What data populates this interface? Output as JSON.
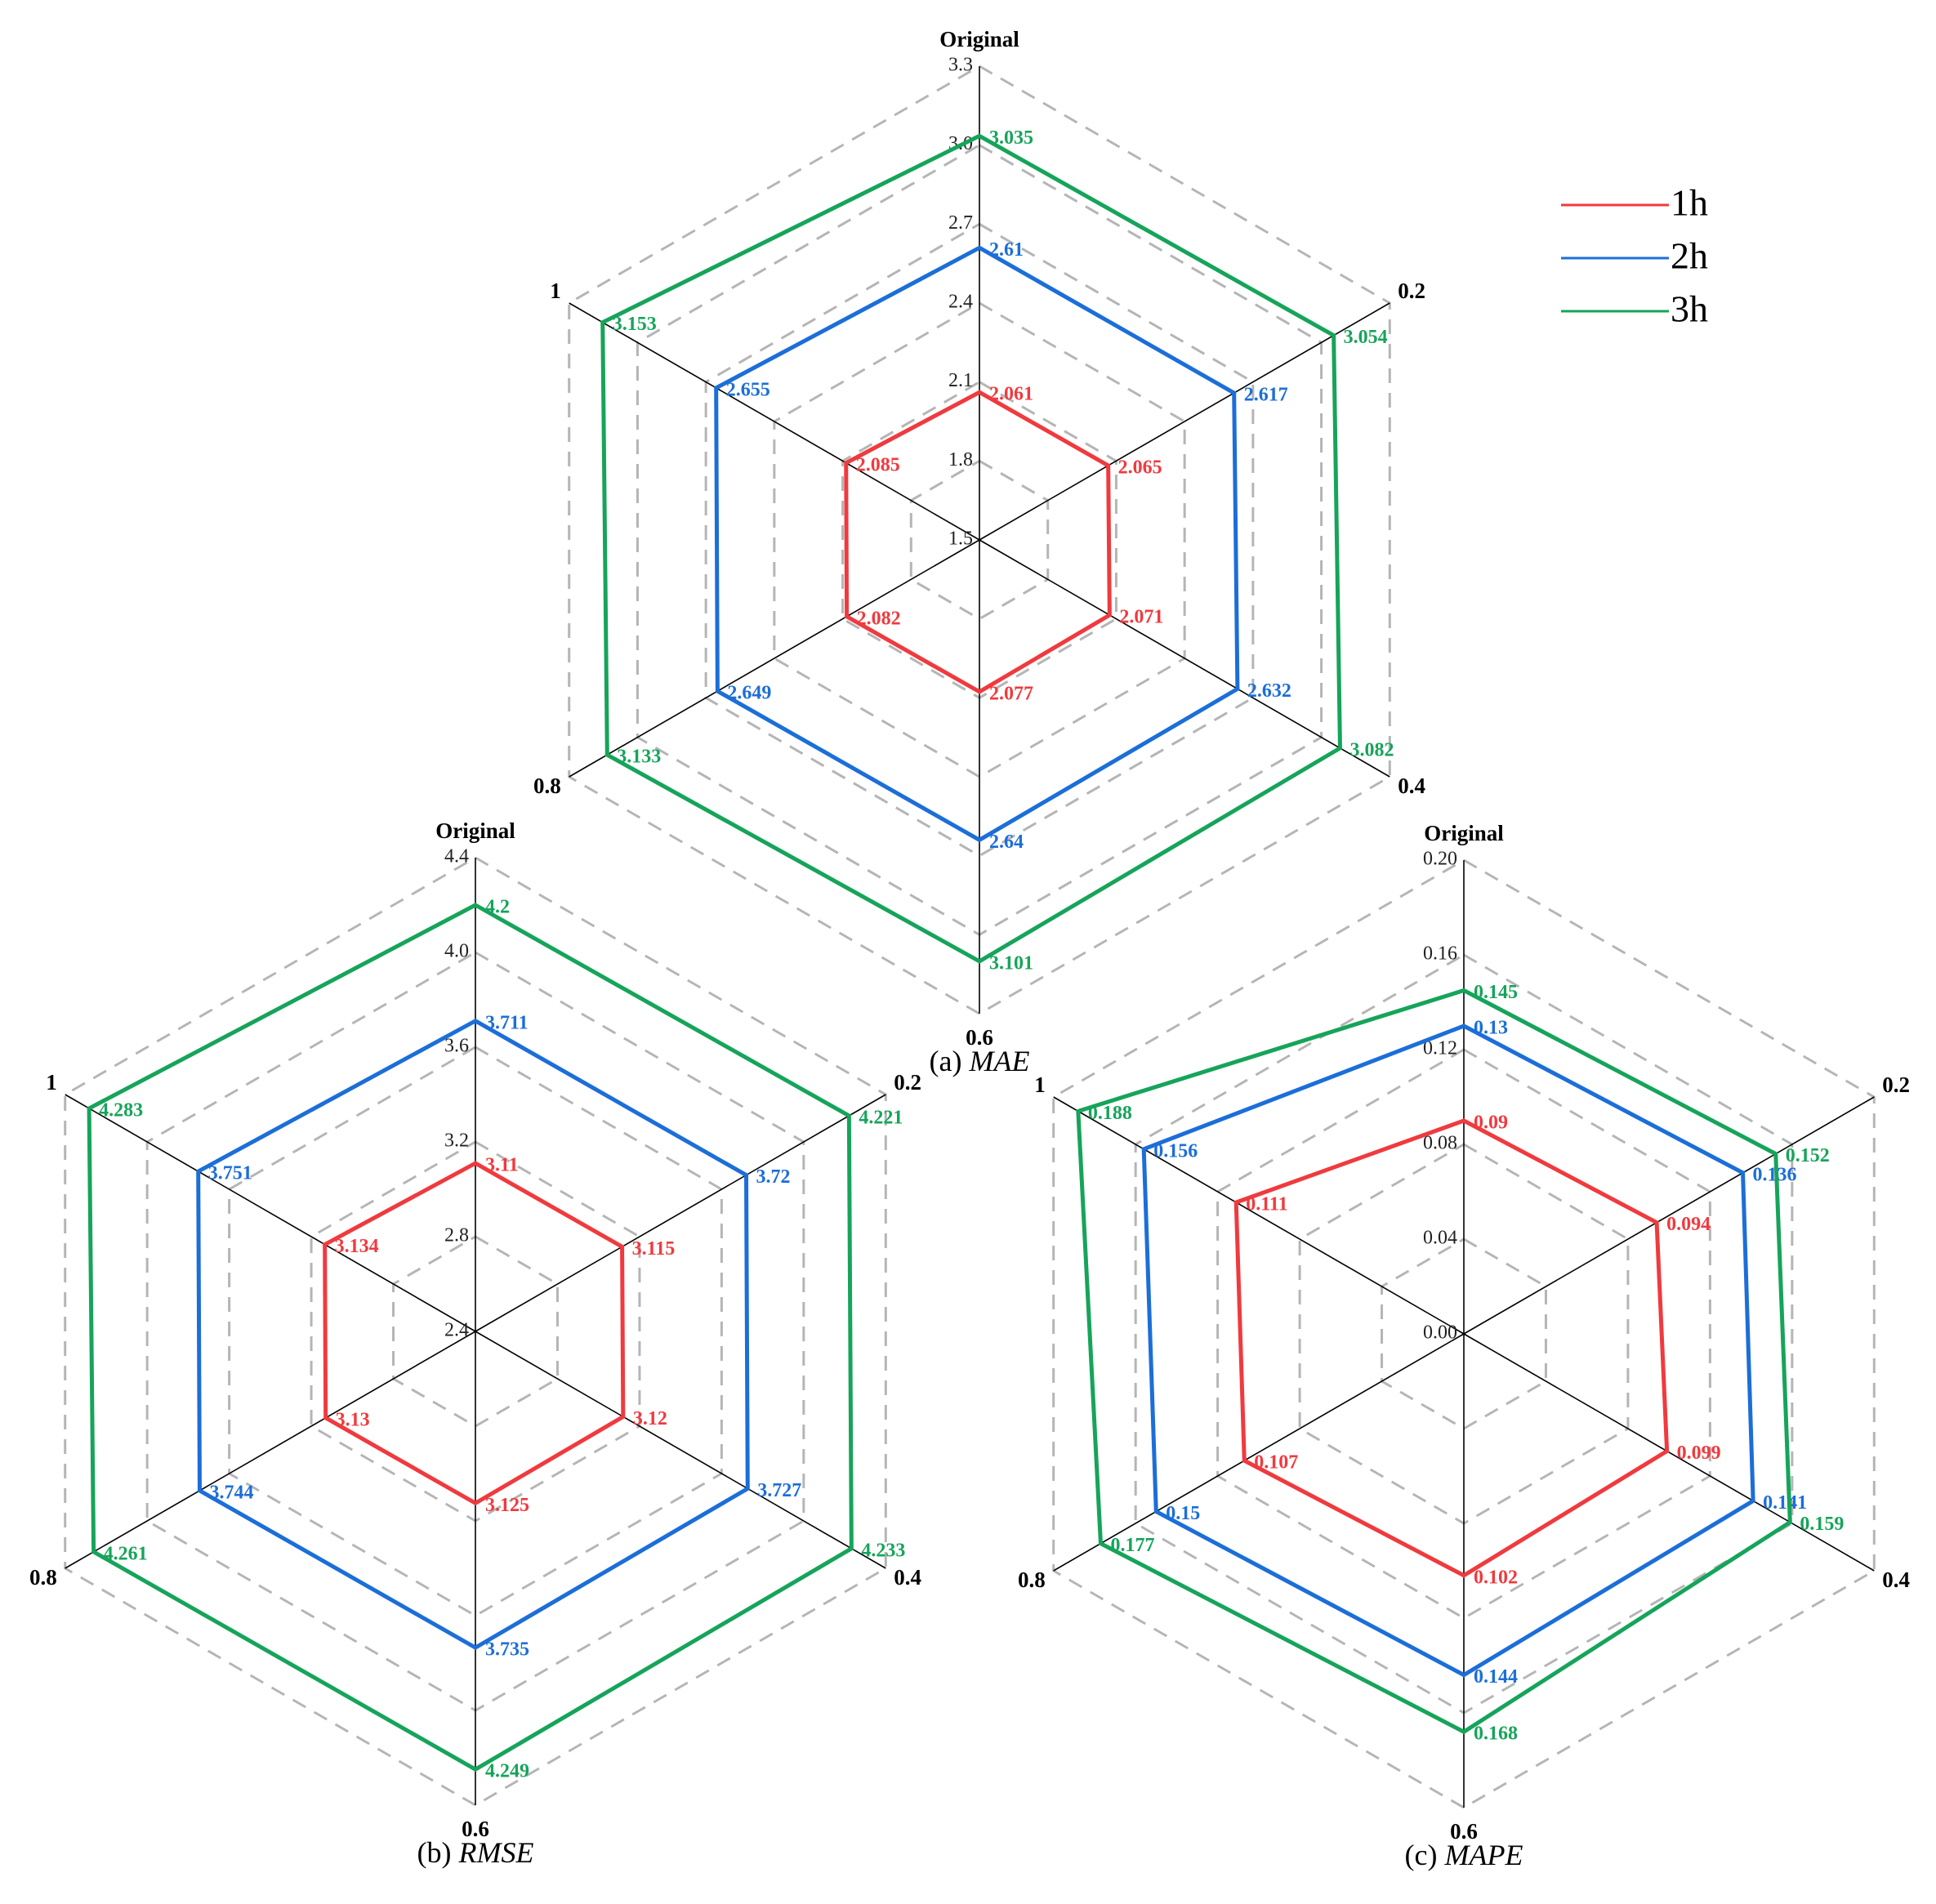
{
  "chart_data": [
    {
      "type": "radar",
      "panel": "(a)",
      "title": "MAE",
      "categories": [
        "Original",
        "0.2",
        "0.4",
        "0.6",
        "0.8",
        "1"
      ],
      "ylim": [
        1.5,
        3.3
      ],
      "yticks": [
        1.5,
        1.8,
        2.1,
        2.4,
        2.7,
        {
          "value": 3,
          "label": "3.0"
        },
        3.3
      ],
      "grid": true,
      "legend": "upper right",
      "series": [
        {
          "name": "1h",
          "color": "#f03a3e",
          "values": [
            2.061,
            2.065,
            2.071,
            2.077,
            2.082,
            2.085
          ]
        },
        {
          "name": "2h",
          "color": "#1c6ed8",
          "values": [
            2.61,
            2.617,
            2.632,
            2.64,
            2.649,
            2.655
          ]
        },
        {
          "name": "3h",
          "color": "#16a45a",
          "values": [
            3.035,
            3.054,
            3.082,
            3.101,
            3.133,
            3.153
          ]
        }
      ]
    },
    {
      "type": "radar",
      "panel": "(b)",
      "title": "RMSE",
      "categories": [
        "Original",
        "0.2",
        "0.4",
        "0.6",
        "0.8",
        "1"
      ],
      "ylim": [
        2.4,
        4.4
      ],
      "yticks": [
        2.4,
        2.8,
        3.2,
        3.6,
        {
          "value": 4,
          "label": "4.0"
        },
        4.4
      ],
      "grid": true,
      "series": [
        {
          "color": "#f03a3e",
          "values": [
            3.11,
            3.115,
            3.12,
            3.125,
            3.13,
            3.134
          ]
        },
        {
          "color": "#1c6ed8",
          "values": [
            3.711,
            3.72,
            3.727,
            3.735,
            3.744,
            3.751
          ]
        },
        {
          "color": "#16a45a",
          "values": [
            4.2,
            4.221,
            4.233,
            4.249,
            4.261,
            4.283
          ]
        }
      ]
    },
    {
      "type": "radar",
      "panel": "(c)",
      "title": "MAPE",
      "categories": [
        "Original",
        "0.2",
        "0.4",
        "0.6",
        "0.8",
        "1"
      ],
      "ylim": [
        0,
        0.2
      ],
      "yticks": [
        {
          "value": 0,
          "label": "0.00"
        },
        0.04,
        0.08,
        0.12,
        0.16,
        {
          "value": 0.2,
          "label": "0.20"
        }
      ],
      "grid": true,
      "series": [
        {
          "color": "#f03a3e",
          "values": [
            0.09,
            0.094,
            0.099,
            0.102,
            0.107,
            0.111
          ]
        },
        {
          "color": "#1c6ed8",
          "values": [
            0.13,
            0.136,
            0.141,
            0.144,
            0.15,
            0.156
          ]
        },
        {
          "color": "#16a45a",
          "values": [
            0.145,
            0.152,
            0.159,
            0.168,
            0.177,
            0.188
          ]
        }
      ]
    }
  ]
}
